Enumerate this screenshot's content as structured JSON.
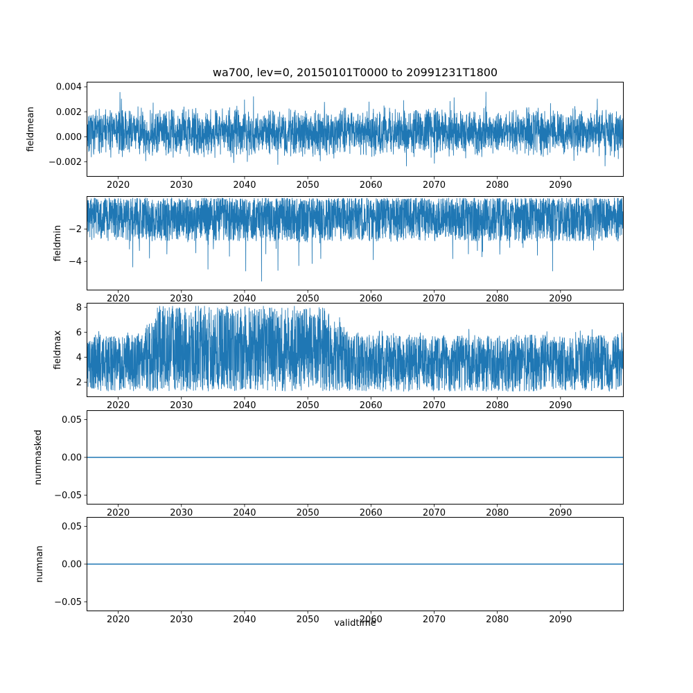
{
  "figure": {
    "title": "wa700, lev=0, 20150101T0000 to 20991231T1800",
    "xlabel": "validtime",
    "line_color": "#1f77b4",
    "axes_color": "#000000",
    "x_start": 2015,
    "x_end": 2100,
    "xticks": [
      2020,
      2030,
      2040,
      2050,
      2060,
      2070,
      2080,
      2090
    ]
  },
  "chart_data": [
    {
      "type": "line",
      "name": "fieldmean",
      "ylabel": "fieldmean",
      "x_axis": "validtime (years 2015-2099)",
      "ylim": [
        -0.0032,
        0.0044
      ],
      "yticks": [
        -0.002,
        0,
        0.002,
        0.004
      ],
      "ytick_labels": [
        "−0.002",
        "0.000",
        "0.002",
        "0.004"
      ],
      "summary": {
        "description": "dense noisy series centered slightly above zero",
        "mean": 0.0005,
        "typical_range": [
          -0.002,
          0.0025
        ],
        "min": -0.003,
        "max": 0.004
      },
      "gen": {
        "kind": "band",
        "seed": 7,
        "n": 3400,
        "base": 0.0004,
        "amp": 0.0021,
        "spike_prob": 0.12,
        "spike_amp": 0.0014,
        "min": -0.0031,
        "max": 0.0042
      }
    },
    {
      "type": "line",
      "name": "fieldmin",
      "ylabel": "fieldmin",
      "x_axis": "validtime (years 2015-2099)",
      "ylim": [
        -5.8,
        0.05
      ],
      "yticks": [
        -2,
        -4
      ],
      "ytick_labels": [
        "−2",
        "−4"
      ],
      "summary": {
        "description": "dense negative noise hugging zero with downward spikes",
        "typical_range": [
          -2.8,
          -0.1
        ],
        "extreme_min": -5.5
      },
      "gen": {
        "kind": "spiky-neg",
        "seed": 21,
        "n": 3400,
        "top": 0.06,
        "depth": 2.7,
        "pow": 1.25,
        "spike_prob": 0.02,
        "spike_depth": 2.8,
        "min": -5.5
      }
    },
    {
      "type": "line",
      "name": "fieldmax",
      "ylabel": "fieldmax",
      "x_axis": "validtime (years 2015-2099)",
      "ylim": [
        0.8,
        8.35
      ],
      "yticks": [
        2,
        4,
        6,
        8
      ],
      "ytick_labels": [
        "2",
        "4",
        "6",
        "8"
      ],
      "summary": {
        "description": "dense positive noise; upper envelope rises to ~8 between ~2025 and ~2055, otherwise ~6",
        "typical_range": [
          1.2,
          6
        ],
        "extreme_max": 8.1
      },
      "gen": {
        "kind": "band-varying",
        "seed": 33,
        "n": 3400,
        "lower": 1.25,
        "upper_base": 5.8,
        "upper_bump": 2.2,
        "rise_start": 2023,
        "fall_end": 2057,
        "ramp": 4,
        "pow": 1.0,
        "spike_prob": 0.01,
        "max": 8.1
      }
    },
    {
      "type": "line",
      "name": "nummasked",
      "ylabel": "nummasked",
      "x_axis": "validtime (years 2015-2099)",
      "ylim": [
        -0.0625,
        0.0625
      ],
      "yticks": [
        -0.05,
        0,
        0.05
      ],
      "ytick_labels": [
        "−0.05",
        "0.00",
        "0.05"
      ],
      "summary": {
        "description": "constant zero line",
        "value": 0
      },
      "gen": {
        "kind": "constant",
        "seed": 1,
        "n": 2,
        "value": 0
      }
    },
    {
      "type": "line",
      "name": "numnan",
      "ylabel": "numnan",
      "x_axis": "validtime (years 2015-2099)",
      "ylim": [
        -0.0625,
        0.0625
      ],
      "yticks": [
        -0.05,
        0,
        0.05
      ],
      "ytick_labels": [
        "−0.05",
        "0.00",
        "0.05"
      ],
      "summary": {
        "description": "constant zero line",
        "value": 0
      },
      "gen": {
        "kind": "constant",
        "seed": 2,
        "n": 2,
        "value": 0
      }
    }
  ]
}
